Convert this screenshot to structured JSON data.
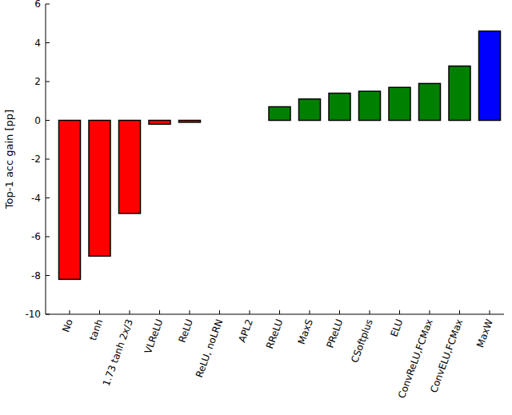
{
  "chart_data": {
    "type": "bar",
    "y_label": "Top-1 acc gain [pp]",
    "categories": [
      "No",
      "tanh",
      "1.73 tanh 2x/3",
      "VLReLU",
      "ReLU",
      "ReLU, noLRN",
      "APL2",
      "RReLU",
      "MaxS",
      "PReLU",
      "CSoftplus",
      "ELU",
      "ConvReLU,FCMax",
      "ConvELU,FCMax",
      "MaxW"
    ],
    "values": [
      -8.2,
      -7.0,
      -4.8,
      -0.2,
      -0.1,
      0,
      0,
      0.7,
      1.1,
      1.4,
      1.5,
      1.7,
      1.9,
      2.8,
      4.6
    ],
    "colors": [
      "#ff0000",
      "#ff0000",
      "#ff0000",
      "#ff0000",
      "#ff0000",
      "#ff0000",
      "#008000",
      "#008000",
      "#008000",
      "#008000",
      "#008000",
      "#008000",
      "#008000",
      "#008000",
      "#0000ff"
    ],
    "ylim": [
      -10,
      6
    ],
    "yticks": [
      -10,
      -8,
      -6,
      -4,
      -2,
      0,
      2,
      4,
      6
    ]
  }
}
